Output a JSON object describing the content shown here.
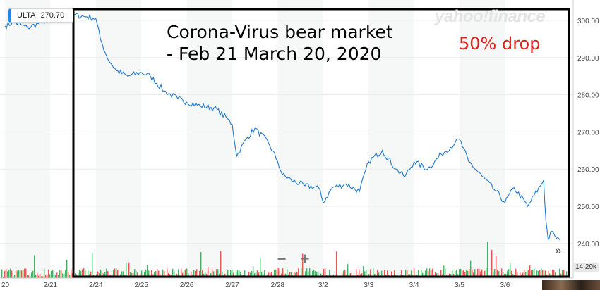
{
  "header": {
    "ticker": "ULTA",
    "last_price": "270.70",
    "brand": "yahoo!finance"
  },
  "annotations": {
    "title": "Corona-Virus bear market\n- Feb 21 March 20, 2020",
    "drop": "50% drop"
  },
  "controls": {
    "zoom_out": "−",
    "zoom_in": "+",
    "forward": "»",
    "volume_label": "14.29k"
  },
  "colors": {
    "price_line": "#1e78d2",
    "volume_up": "#2e9e4f",
    "volume_down": "#e03b3b",
    "annotation_box": "#000000",
    "band_shade": "#f6f8f7"
  },
  "chart_data": {
    "type": "line",
    "title": "",
    "xlabel": "",
    "ylabel": "",
    "ylim": [
      235,
      303
    ],
    "y_ticks": [
      "300.00",
      "290.00",
      "280.00",
      "270.00",
      "260.00",
      "250.00",
      "240.00"
    ],
    "categories": [
      "20",
      "2/21",
      "2/24",
      "2/25",
      "2/26",
      "2/27",
      "2/28",
      "3/2",
      "3/3",
      "3/4",
      "3/5",
      "3/6"
    ],
    "series": [
      {
        "x": [
          0,
          0.2,
          0.5,
          0.8,
          1.0,
          1.2,
          1.5,
          1.8,
          2.0,
          2.1,
          2.25,
          2.45,
          2.7,
          3.0,
          3.2,
          3.5,
          3.8,
          4.0,
          4.3,
          4.6,
          4.9,
          5.0,
          5.1,
          5.3,
          5.5,
          5.8,
          6.0,
          6.1,
          6.3,
          6.6,
          6.9,
          7.0,
          7.2,
          7.5,
          7.8,
          8.0,
          8.3,
          8.6,
          8.8,
          9.0,
          9.3,
          9.6,
          9.9,
          10.0,
          10.2,
          10.5,
          10.8,
          11.0,
          11.2,
          11.5,
          11.85,
          11.9,
          11.95,
          12.0,
          12.1,
          12.2
        ],
        "y": [
          298.5,
          299.5,
          298,
          299.5,
          300.5,
          302,
          301.5,
          301,
          300.5,
          295,
          290,
          286.5,
          285,
          286,
          285,
          281,
          279,
          278,
          277,
          276.5,
          273.5,
          272,
          263.5,
          268,
          271,
          267,
          262,
          258.5,
          257,
          255.5,
          255,
          251,
          255,
          256,
          254,
          262,
          265,
          260,
          258,
          262,
          260,
          264,
          267,
          268,
          262,
          258,
          254,
          251,
          255,
          250,
          257,
          246,
          241,
          243,
          242,
          241
        ]
      }
    ],
    "grid": "vertical bands",
    "legend": "none"
  }
}
